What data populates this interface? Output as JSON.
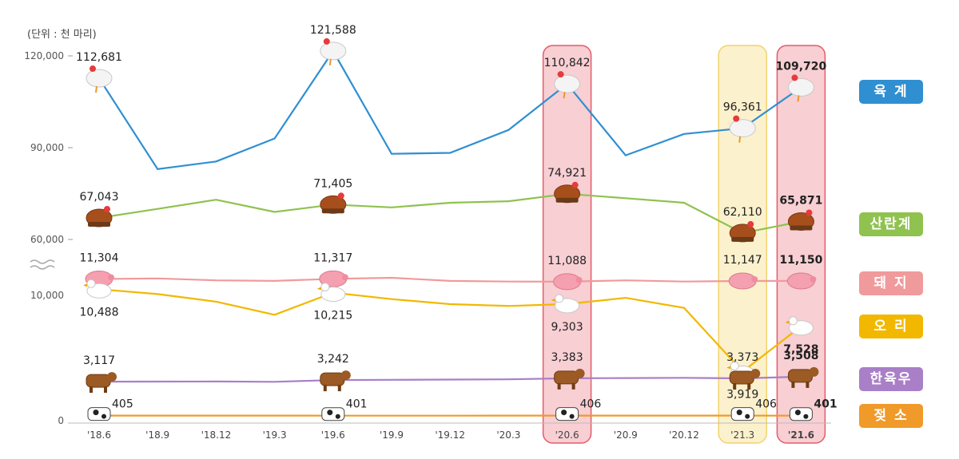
{
  "unit_label": "(단위 : 천 마리)",
  "colors": {
    "broiler": "#2f8fd1",
    "layer": "#8fc24f",
    "pig": "#f09a9c",
    "duck": "#f2b800",
    "hanwoo": "#a97fc7",
    "dairy": "#f09a2a",
    "highlight_red_fill": "#f7c7cb",
    "highlight_red_stroke": "#e45b6b",
    "highlight_yellow_fill": "#fcefc4",
    "highlight_yellow_stroke": "#f2d36b"
  },
  "chart_data": {
    "type": "line",
    "title": "",
    "xlabel": "",
    "ylabel": "",
    "categories": [
      "'18.6",
      "'18.9",
      "'18.12",
      "'19.3",
      "'19.6",
      "'19.9",
      "'19.12",
      "'20.3",
      "'20.6",
      "'20.9",
      "'20.12",
      "'21.3",
      "'21.6"
    ],
    "y_ticks_upper": [
      "120,000",
      "90,000",
      "60,000"
    ],
    "y_ticks_lower": [
      "10,000",
      "0"
    ],
    "axis_break": true,
    "ylim_upper": [
      60000,
      120000
    ],
    "ylim_lower": [
      0,
      10000
    ],
    "highlighted_categories_red": [
      "'20.6",
      "'21.6"
    ],
    "highlighted_categories_yellow": [
      "'21.3"
    ],
    "series": [
      {
        "name": "육   계",
        "key": "broiler",
        "segment": "upper",
        "legend_top": 100,
        "values": [
          112681,
          83000,
          85500,
          93000,
          121588,
          88000,
          88300,
          95800,
          110842,
          87500,
          94500,
          96361,
          109720
        ],
        "labels": {
          "0": "112,681",
          "4": "121,588",
          "8": "110,842",
          "11": "96,361",
          "12": "109,720"
        },
        "label_pos": "above"
      },
      {
        "name": "산란계",
        "key": "layer",
        "segment": "upper",
        "legend_top": 266,
        "values": [
          67043,
          70000,
          73000,
          69000,
          71405,
          70500,
          72000,
          72500,
          74921,
          73500,
          72000,
          62110,
          65871
        ],
        "labels": {
          "0": "67,043",
          "4": "71,405",
          "8": "74,921",
          "11": "62,110",
          "12": "65,871"
        },
        "label_pos": "above"
      },
      {
        "name": "돼   지",
        "key": "pig",
        "segment": "lower",
        "legend_top": 340,
        "values": [
          11304,
          11350,
          11200,
          11150,
          11317,
          11400,
          11150,
          11100,
          11088,
          11200,
          11100,
          11147,
          11150
        ],
        "labels": {
          "0": "11,304",
          "4": "11,317",
          "8": "11,088",
          "11": "11,147",
          "12": "11,150"
        },
        "label_pos": "above"
      },
      {
        "name": "오   리",
        "key": "duck",
        "segment": "lower",
        "legend_top": 394,
        "values": [
          10488,
          10100,
          9500,
          8450,
          10215,
          9700,
          9300,
          9150,
          9303,
          9800,
          9000,
          3919,
          7528
        ],
        "labels": {
          "0": "10,488",
          "4": "10,215",
          "8": "9,303",
          "11": "3,919",
          "12": "7,528"
        },
        "label_pos": "below"
      },
      {
        "name": "한육우",
        "key": "hanwoo",
        "segment": "lower",
        "legend_top": 460,
        "values": [
          3117,
          3120,
          3130,
          3100,
          3242,
          3260,
          3280,
          3300,
          3383,
          3400,
          3420,
          3373,
          3508
        ],
        "labels": {
          "0": "3,117",
          "4": "3,242",
          "8": "3,383",
          "11": "3,373",
          "12": "3,508"
        },
        "label_pos": "above"
      },
      {
        "name": "젖   소",
        "key": "dairy",
        "segment": "lower",
        "legend_top": 506,
        "values": [
          405,
          405,
          405,
          405,
          401,
          401,
          401,
          405,
          406,
          406,
          406,
          406,
          401
        ],
        "labels": {
          "0": "405",
          "4": "401",
          "8": "406",
          "11": "406",
          "12": "401"
        },
        "label_pos": "right"
      }
    ]
  }
}
